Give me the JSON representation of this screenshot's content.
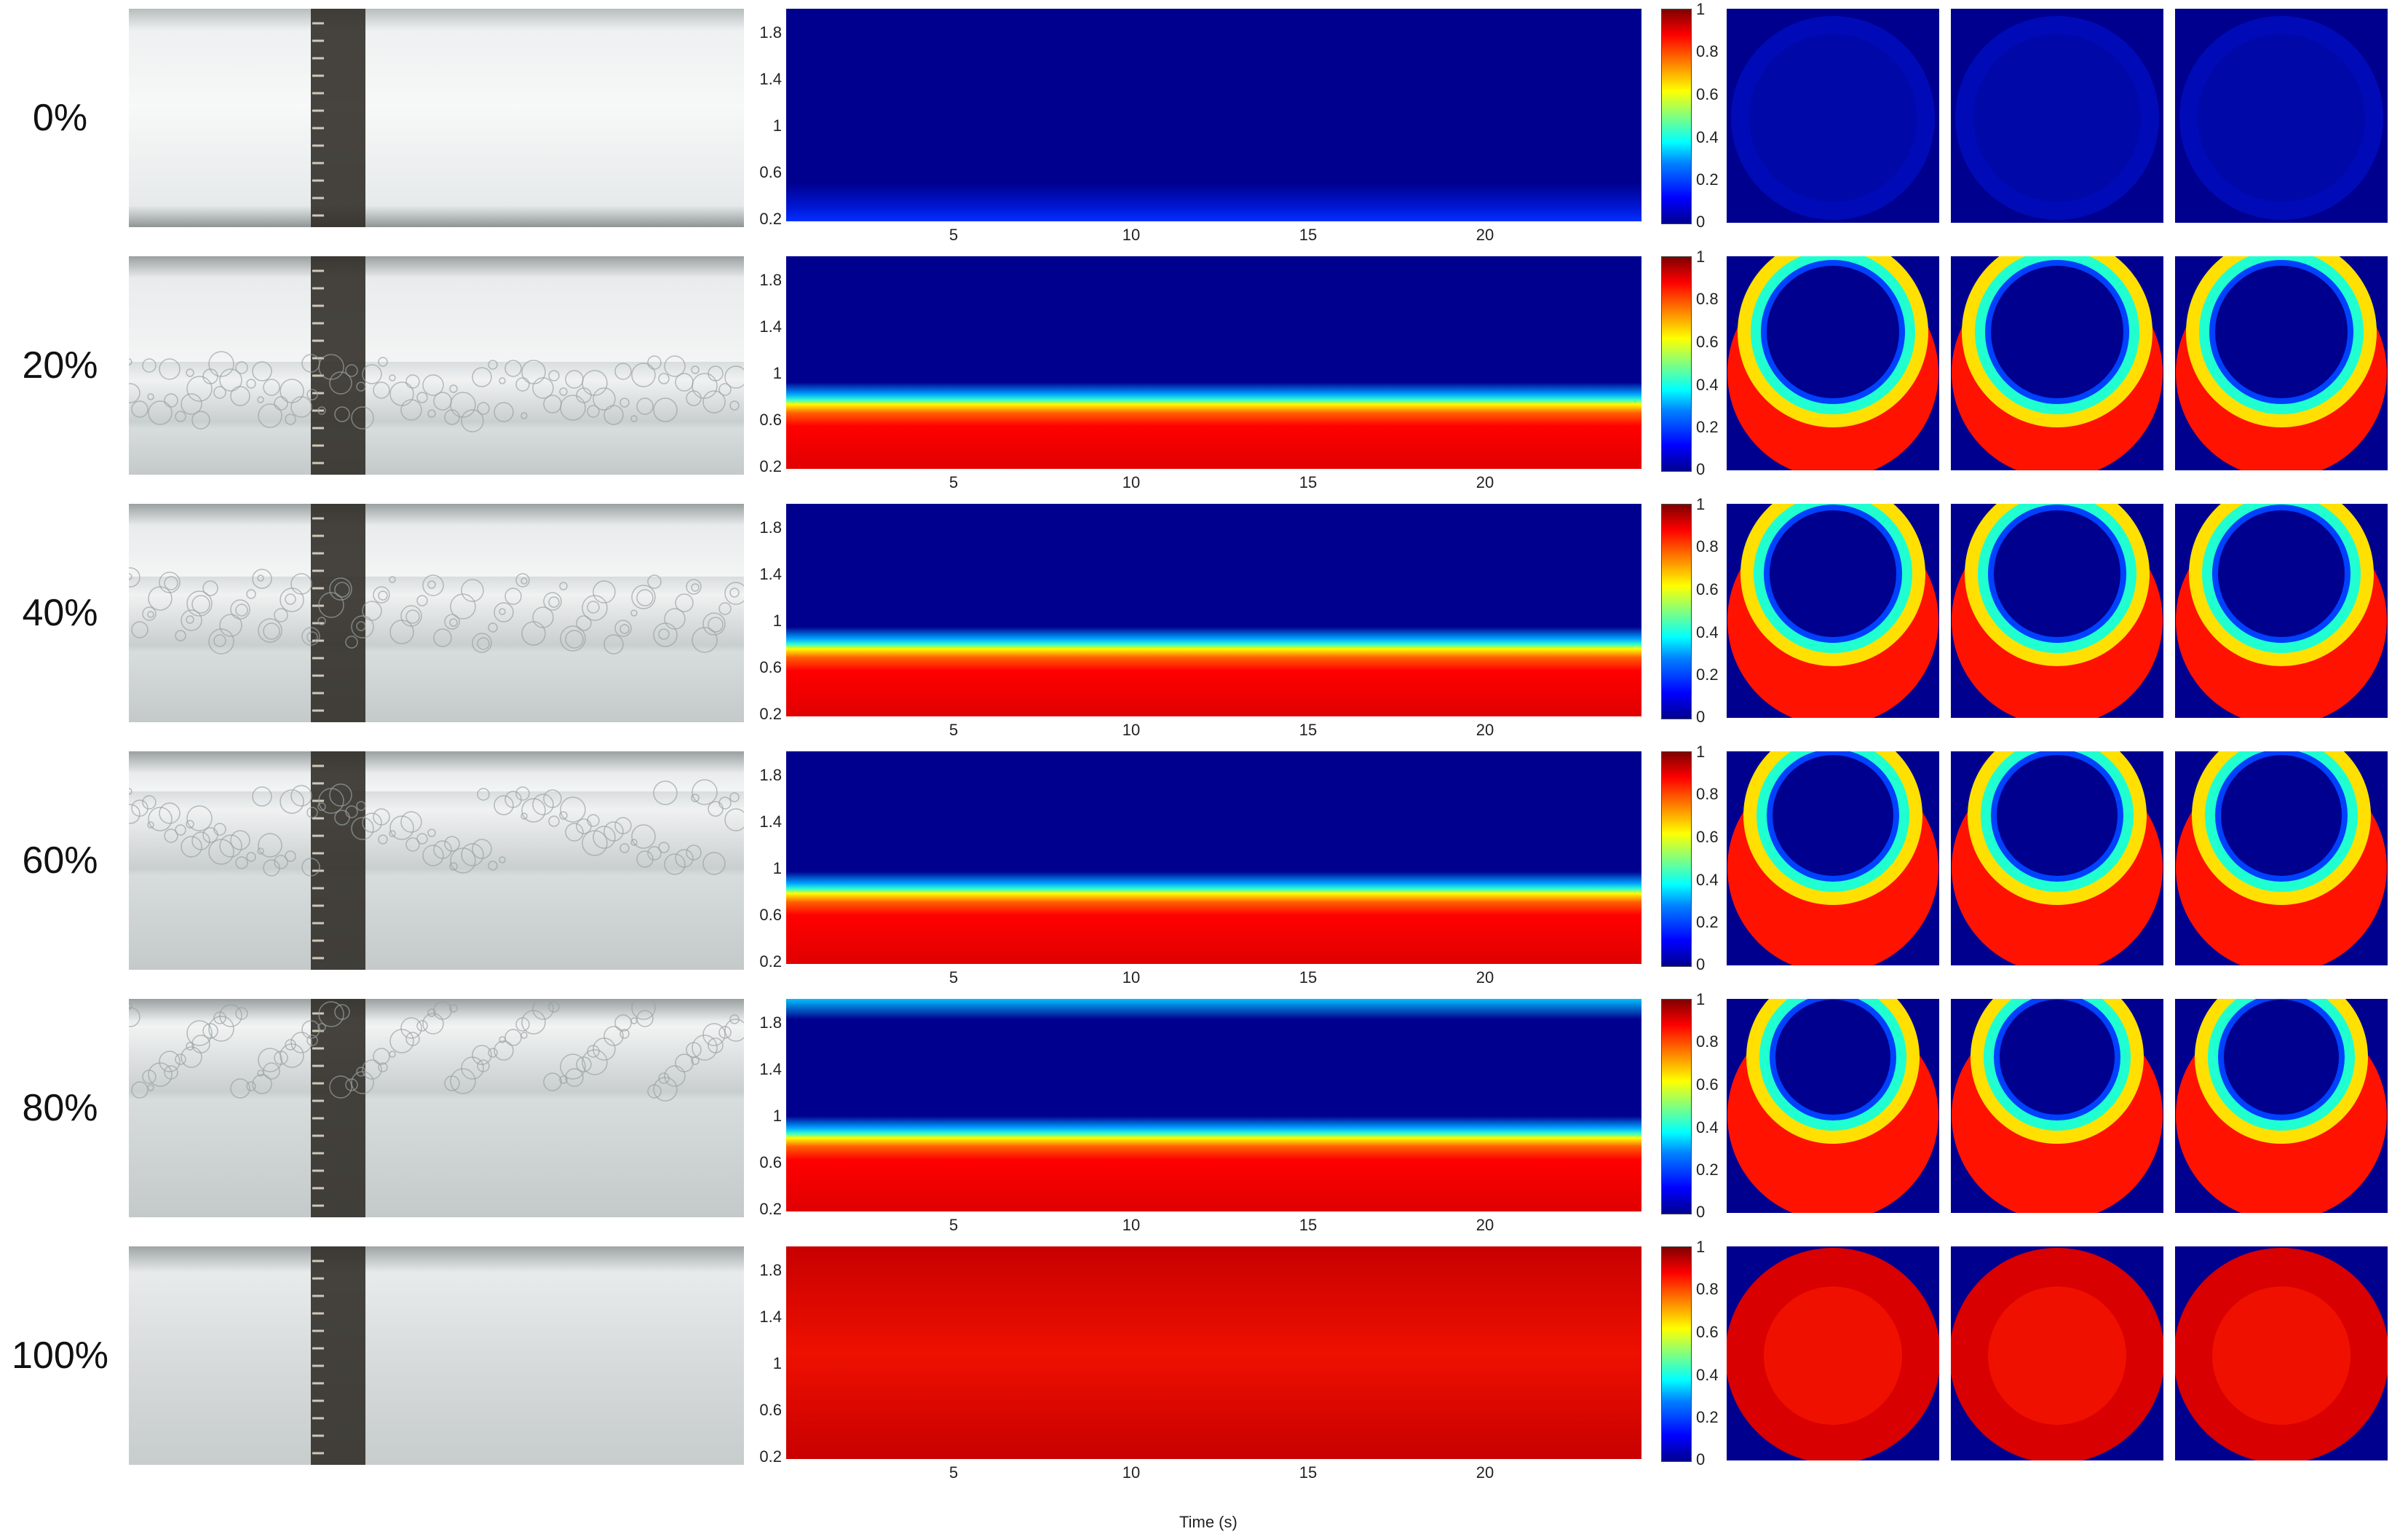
{
  "rows": [
    {
      "label": "0%",
      "fill": 0.0
    },
    {
      "label": "20%",
      "fill": 0.2
    },
    {
      "label": "40%",
      "fill": 0.4
    },
    {
      "label": "60%",
      "fill": 0.6
    },
    {
      "label": "80%",
      "fill": 0.8
    },
    {
      "label": "100%",
      "fill": 1.0
    }
  ],
  "y_ticks": [
    "1.8",
    "1.4",
    "1",
    "0.6",
    "0.2"
  ],
  "x_ticks": [
    "5",
    "10",
    "15",
    "20"
  ],
  "colorbar_ticks": [
    "1",
    "0.8",
    "0.6",
    "0.4",
    "0.2",
    "0"
  ],
  "x_axis_label": "Time (s)",
  "colors": {
    "low": "#00008f",
    "mid": "#00ffff",
    "high": "#ff0000",
    "photo": "#e8eceb"
  }
}
